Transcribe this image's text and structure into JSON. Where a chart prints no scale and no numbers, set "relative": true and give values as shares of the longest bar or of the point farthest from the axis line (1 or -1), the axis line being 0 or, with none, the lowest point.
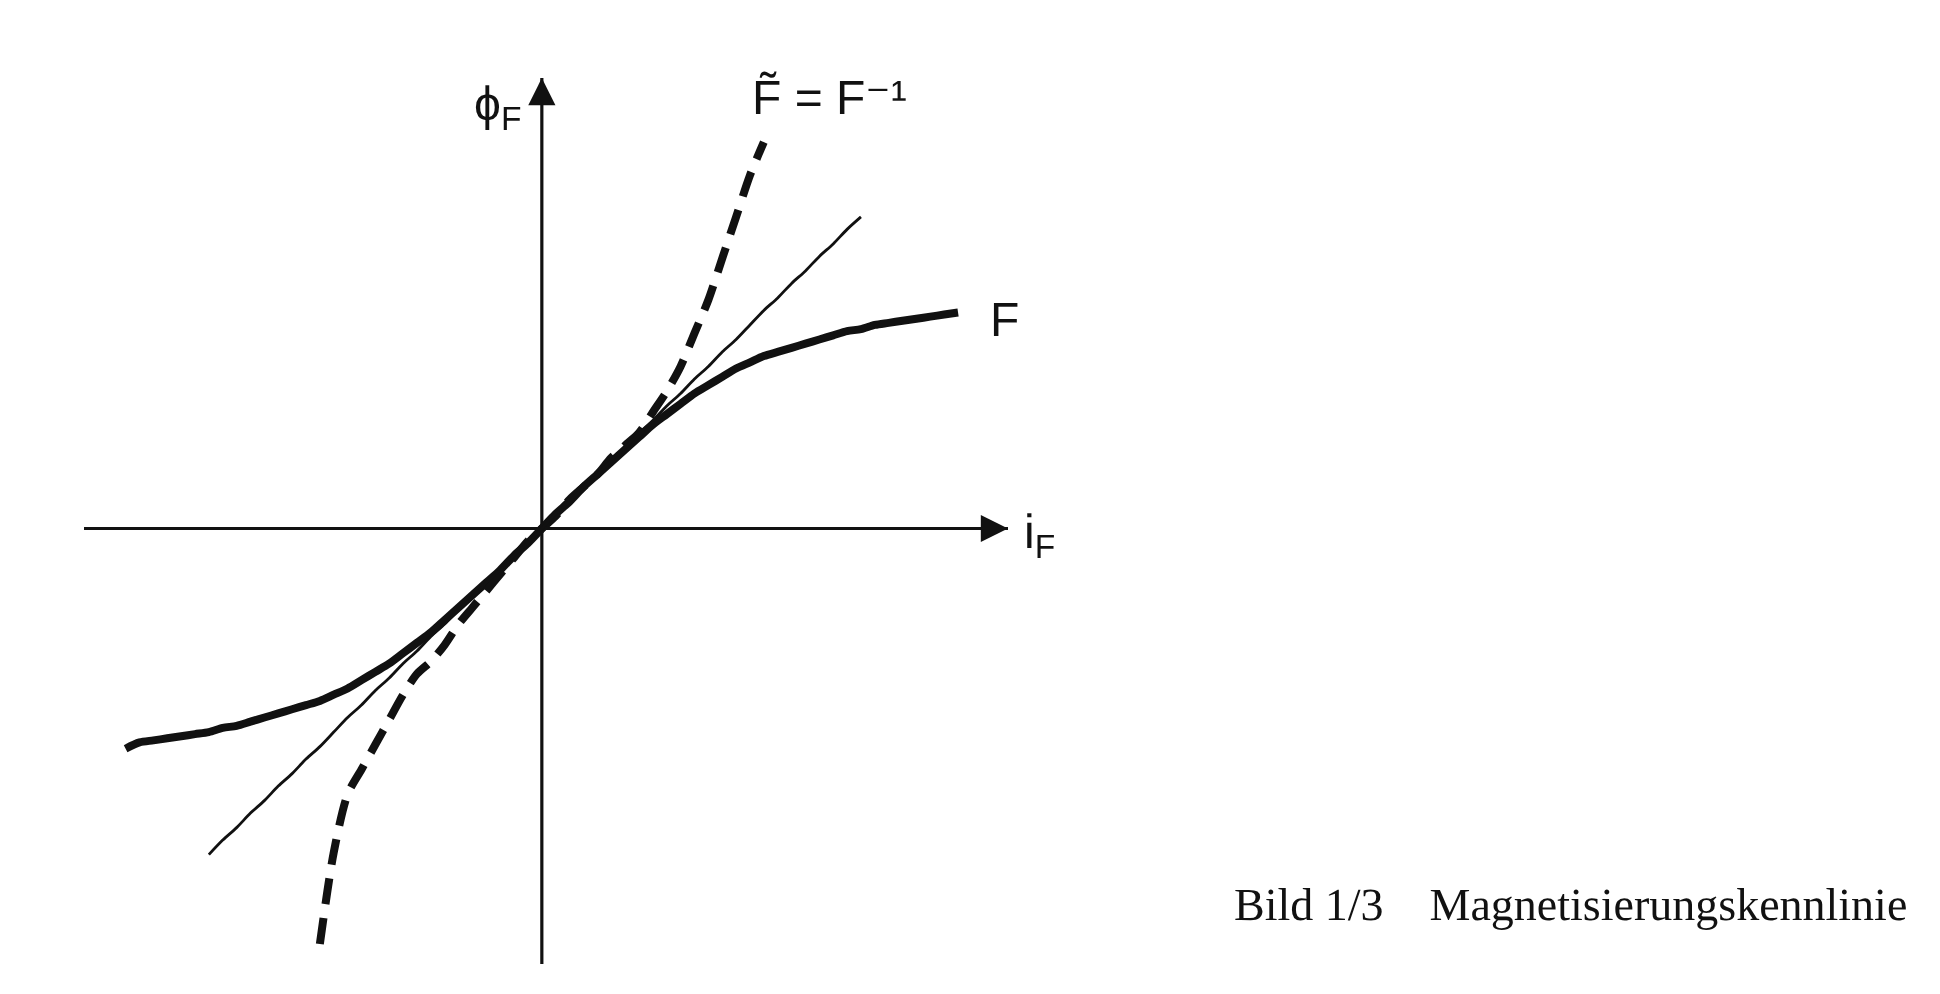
{
  "chart_data": {
    "type": "line",
    "relative": true,
    "xlabel": "i$_{F}$",
    "ylabel": "ϕ$_{F}$",
    "annotations": [
      "Bild 1/3    Magnetisierungskennlinie"
    ],
    "categories": [
      null,
      null,
      null,
      null,
      null,
      null,
      null,
      null,
      null,
      null,
      null,
      null,
      null,
      null,
      null,
      null,
      null,
      null,
      null,
      null,
      null,
      null,
      null,
      null,
      null,
      null,
      null,
      null,
      null,
      null,
      null,
      null,
      null,
      null,
      null,
      null,
      null,
      null,
      null,
      null,
      null,
      null,
      null,
      null,
      null,
      null,
      null,
      null,
      null,
      null,
      null,
      null,
      null,
      null,
      null,
      null,
      null,
      null,
      null,
      null,
      null
    ],
    "series": [
      {
        "name": "F",
        "color": "#111111",
        "line_style": "solid",
        "values": [
          -0.53,
          -0.515,
          -0.51,
          -0.505,
          -0.5,
          -0.495,
          -0.49,
          -0.48,
          -0.475,
          -0.465,
          -0.455,
          -0.445,
          -0.435,
          -0.425,
          -0.415,
          -0.4,
          -0.385,
          -0.365,
          -0.345,
          -0.325,
          -0.3,
          -0.275,
          -0.25,
          -0.22,
          -0.19,
          -0.16,
          -0.13,
          -0.1,
          -0.065,
          -0.035,
          0,
          0.035,
          0.065,
          0.1,
          0.13,
          0.16,
          0.19,
          0.22,
          0.25,
          0.275,
          0.3,
          0.325,
          0.345,
          0.365,
          0.385,
          0.4,
          0.415,
          0.425,
          0.435,
          0.445,
          0.455,
          0.465,
          0.475,
          0.48,
          0.49,
          0.495,
          0.5,
          0.505,
          0.51,
          0.515,
          0.52
        ]
      },
      {
        "name": "F̃ = F⁻¹",
        "color": "#111111",
        "line_style": "dashed",
        "values": [
          null,
          null,
          null,
          null,
          null,
          null,
          null,
          null,
          null,
          null,
          null,
          null,
          null,
          null,
          -1.0,
          -0.78,
          -0.64,
          -0.58,
          -0.52,
          -0.46,
          -0.4,
          -0.35,
          -0.32,
          -0.28,
          -0.23,
          -0.19,
          -0.15,
          -0.11,
          -0.07,
          -0.03,
          0,
          0.03,
          0.07,
          0.1,
          0.13,
          0.17,
          0.2,
          0.23,
          0.28,
          0.33,
          0.39,
          0.47,
          0.55,
          0.65,
          0.75,
          0.85,
          0.93,
          null,
          null,
          null,
          null,
          null,
          null,
          null,
          null,
          null,
          null,
          null,
          null,
          null,
          null
        ]
      },
      {
        "color": "#111111",
        "line_style": "solid",
        "values": [
          null,
          null,
          null,
          null,
          null,
          null,
          -0.785,
          -0.75,
          -0.72,
          -0.685,
          -0.655,
          -0.62,
          -0.59,
          -0.555,
          -0.525,
          -0.49,
          -0.455,
          -0.425,
          -0.39,
          -0.36,
          -0.325,
          -0.295,
          -0.26,
          -0.23,
          -0.195,
          -0.165,
          -0.13,
          -0.1,
          -0.065,
          -0.035,
          0,
          0.035,
          0.065,
          0.1,
          0.13,
          0.165,
          0.195,
          0.23,
          0.26,
          0.295,
          0.325,
          0.36,
          0.39,
          0.425,
          0.455,
          0.49,
          0.525,
          0.555,
          0.59,
          0.62,
          0.655,
          0.685,
          0.72,
          0.75,
          null,
          null,
          null,
          null,
          null,
          null,
          null
        ]
      }
    ]
  }
}
